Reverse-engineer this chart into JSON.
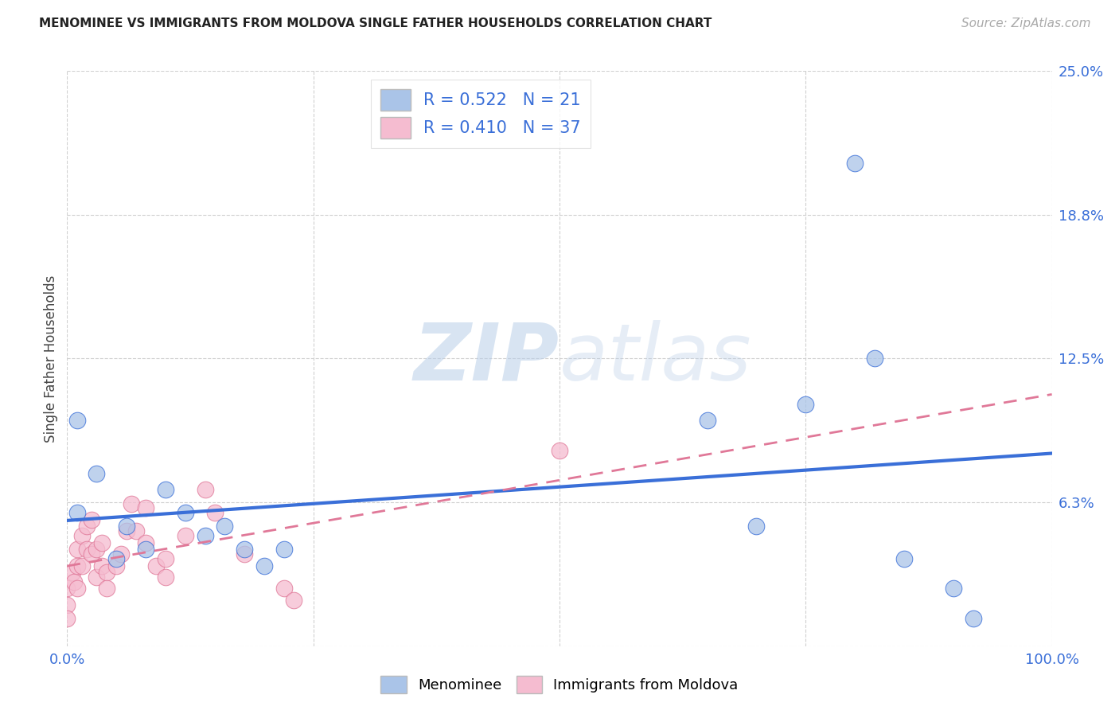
{
  "title": "MENOMINEE VS IMMIGRANTS FROM MOLDOVA SINGLE FATHER HOUSEHOLDS CORRELATION CHART",
  "source": "Source: ZipAtlas.com",
  "ylabel": "Single Father Households",
  "xlim": [
    0,
    1.0
  ],
  "ylim": [
    0,
    0.25
  ],
  "xticks": [
    0.0,
    0.25,
    0.5,
    0.75,
    1.0
  ],
  "xtick_labels": [
    "0.0%",
    "",
    "",
    "",
    "100.0%"
  ],
  "ytick_labels": [
    "",
    "6.3%",
    "12.5%",
    "18.8%",
    "25.0%"
  ],
  "yticks": [
    0.0,
    0.0625,
    0.125,
    0.1875,
    0.25
  ],
  "blue_R": 0.522,
  "blue_N": 21,
  "pink_R": 0.41,
  "pink_N": 37,
  "blue_color": "#aac4e8",
  "blue_line_color": "#3a6fd8",
  "pink_color": "#f5bcd0",
  "pink_line_color": "#e07898",
  "blue_scatter_x": [
    0.01,
    0.03,
    0.05,
    0.06,
    0.08,
    0.1,
    0.12,
    0.14,
    0.16,
    0.18,
    0.2,
    0.22,
    0.01,
    0.65,
    0.7,
    0.75,
    0.8,
    0.82,
    0.85,
    0.9,
    0.92
  ],
  "blue_scatter_y": [
    0.058,
    0.075,
    0.038,
    0.052,
    0.042,
    0.068,
    0.058,
    0.048,
    0.052,
    0.042,
    0.035,
    0.042,
    0.098,
    0.098,
    0.052,
    0.105,
    0.21,
    0.125,
    0.038,
    0.025,
    0.012
  ],
  "pink_scatter_x": [
    0.0,
    0.0,
    0.0,
    0.005,
    0.007,
    0.01,
    0.01,
    0.01,
    0.015,
    0.015,
    0.02,
    0.02,
    0.025,
    0.025,
    0.03,
    0.03,
    0.035,
    0.035,
    0.04,
    0.04,
    0.05,
    0.055,
    0.06,
    0.065,
    0.07,
    0.08,
    0.08,
    0.09,
    0.1,
    0.1,
    0.12,
    0.14,
    0.15,
    0.18,
    0.22,
    0.23,
    0.5
  ],
  "pink_scatter_y": [
    0.025,
    0.018,
    0.012,
    0.032,
    0.028,
    0.042,
    0.035,
    0.025,
    0.048,
    0.035,
    0.052,
    0.042,
    0.055,
    0.04,
    0.042,
    0.03,
    0.045,
    0.035,
    0.032,
    0.025,
    0.035,
    0.04,
    0.05,
    0.062,
    0.05,
    0.06,
    0.045,
    0.035,
    0.038,
    0.03,
    0.048,
    0.068,
    0.058,
    0.04,
    0.025,
    0.02,
    0.085
  ],
  "watermark_zip": "ZIP",
  "watermark_atlas": "atlas",
  "background_color": "#ffffff",
  "grid_color": "#d0d0d0"
}
